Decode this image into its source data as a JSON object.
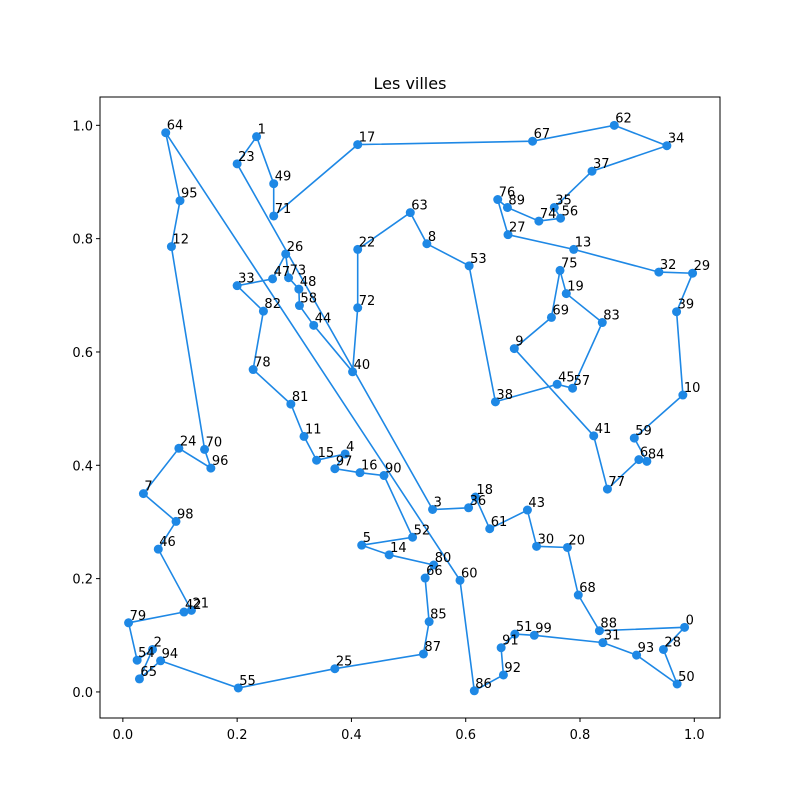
{
  "chart_data": {
    "type": "scatter",
    "title": "Les villes",
    "xlabel": "",
    "ylabel": "",
    "xlim": [
      -0.04,
      1.045
    ],
    "ylim": [
      -0.046,
      1.05
    ],
    "xticks": [
      "0.0",
      "0.2",
      "0.4",
      "0.6",
      "0.8",
      "1.0"
    ],
    "yticks": [
      "0.0",
      "0.2",
      "0.4",
      "0.6",
      "0.8",
      "1.0"
    ],
    "line_color": "#1e88e5",
    "marker_color": "#1e88e5",
    "points": [
      {
        "label": "64",
        "x": 0.075,
        "y": 0.987
      },
      {
        "label": "95",
        "x": 0.1,
        "y": 0.867
      },
      {
        "label": "12",
        "x": 0.085,
        "y": 0.786
      },
      {
        "label": "70",
        "x": 0.143,
        "y": 0.428
      },
      {
        "label": "96",
        "x": 0.154,
        "y": 0.395
      },
      {
        "label": "24",
        "x": 0.098,
        "y": 0.43
      },
      {
        "label": "7",
        "x": 0.036,
        "y": 0.35
      },
      {
        "label": "98",
        "x": 0.093,
        "y": 0.301
      },
      {
        "label": "46",
        "x": 0.062,
        "y": 0.252
      },
      {
        "label": "21",
        "x": 0.12,
        "y": 0.144
      },
      {
        "label": "42",
        "x": 0.107,
        "y": 0.141
      },
      {
        "label": "79",
        "x": 0.01,
        "y": 0.122
      },
      {
        "label": "54",
        "x": 0.025,
        "y": 0.056
      },
      {
        "label": "2",
        "x": 0.052,
        "y": 0.075
      },
      {
        "label": "65",
        "x": 0.029,
        "y": 0.023
      },
      {
        "label": "94",
        "x": 0.066,
        "y": 0.055
      },
      {
        "label": "55",
        "x": 0.202,
        "y": 0.007
      },
      {
        "label": "25",
        "x": 0.371,
        "y": 0.041
      },
      {
        "label": "87",
        "x": 0.526,
        "y": 0.067
      },
      {
        "label": "85",
        "x": 0.536,
        "y": 0.124
      },
      {
        "label": "66",
        "x": 0.529,
        "y": 0.201
      },
      {
        "label": "80",
        "x": 0.544,
        "y": 0.224
      },
      {
        "label": "14",
        "x": 0.466,
        "y": 0.242
      },
      {
        "label": "5",
        "x": 0.418,
        "y": 0.259
      },
      {
        "label": "52",
        "x": 0.507,
        "y": 0.273
      },
      {
        "label": "90",
        "x": 0.457,
        "y": 0.382
      },
      {
        "label": "16",
        "x": 0.415,
        "y": 0.387
      },
      {
        "label": "97",
        "x": 0.371,
        "y": 0.394
      },
      {
        "label": "4",
        "x": 0.389,
        "y": 0.42
      },
      {
        "label": "15",
        "x": 0.339,
        "y": 0.409
      },
      {
        "label": "11",
        "x": 0.317,
        "y": 0.451
      },
      {
        "label": "81",
        "x": 0.294,
        "y": 0.508
      },
      {
        "label": "78",
        "x": 0.228,
        "y": 0.569
      },
      {
        "label": "82",
        "x": 0.246,
        "y": 0.672
      },
      {
        "label": "33",
        "x": 0.2,
        "y": 0.717
      },
      {
        "label": "47",
        "x": 0.262,
        "y": 0.729
      },
      {
        "label": "26",
        "x": 0.285,
        "y": 0.773
      },
      {
        "label": "73",
        "x": 0.29,
        "y": 0.731
      },
      {
        "label": "48",
        "x": 0.308,
        "y": 0.711
      },
      {
        "label": "58",
        "x": 0.309,
        "y": 0.682
      },
      {
        "label": "44",
        "x": 0.334,
        "y": 0.647
      },
      {
        "label": "40",
        "x": 0.402,
        "y": 0.565
      },
      {
        "label": "72",
        "x": 0.411,
        "y": 0.678
      },
      {
        "label": "22",
        "x": 0.411,
        "y": 0.781
      },
      {
        "label": "63",
        "x": 0.503,
        "y": 0.846
      },
      {
        "label": "8",
        "x": 0.532,
        "y": 0.791
      },
      {
        "label": "53",
        "x": 0.606,
        "y": 0.752
      },
      {
        "label": "38",
        "x": 0.652,
        "y": 0.512
      },
      {
        "label": "45",
        "x": 0.76,
        "y": 0.543
      },
      {
        "label": "57",
        "x": 0.787,
        "y": 0.536
      },
      {
        "label": "83",
        "x": 0.839,
        "y": 0.652
      },
      {
        "label": "19",
        "x": 0.776,
        "y": 0.703
      },
      {
        "label": "75",
        "x": 0.765,
        "y": 0.744
      },
      {
        "label": "69",
        "x": 0.75,
        "y": 0.661
      },
      {
        "label": "9",
        "x": 0.685,
        "y": 0.606
      },
      {
        "label": "41",
        "x": 0.824,
        "y": 0.452
      },
      {
        "label": "77",
        "x": 0.848,
        "y": 0.358
      },
      {
        "label": "6",
        "x": 0.903,
        "y": 0.41
      },
      {
        "label": "84",
        "x": 0.917,
        "y": 0.407
      },
      {
        "label": "59",
        "x": 0.895,
        "y": 0.448
      },
      {
        "label": "10",
        "x": 0.98,
        "y": 0.524
      },
      {
        "label": "39",
        "x": 0.969,
        "y": 0.671
      },
      {
        "label": "29",
        "x": 0.997,
        "y": 0.739
      },
      {
        "label": "32",
        "x": 0.938,
        "y": 0.741
      },
      {
        "label": "13",
        "x": 0.789,
        "y": 0.781
      },
      {
        "label": "27",
        "x": 0.674,
        "y": 0.807
      },
      {
        "label": "76",
        "x": 0.656,
        "y": 0.869
      },
      {
        "label": "89",
        "x": 0.673,
        "y": 0.855
      },
      {
        "label": "74",
        "x": 0.728,
        "y": 0.831
      },
      {
        "label": "56",
        "x": 0.766,
        "y": 0.836
      },
      {
        "label": "35",
        "x": 0.755,
        "y": 0.855
      },
      {
        "label": "37",
        "x": 0.821,
        "y": 0.919
      },
      {
        "label": "34",
        "x": 0.952,
        "y": 0.964
      },
      {
        "label": "62",
        "x": 0.86,
        "y": 1.0
      },
      {
        "label": "67",
        "x": 0.717,
        "y": 0.972
      },
      {
        "label": "17",
        "x": 0.411,
        "y": 0.966
      },
      {
        "label": "71",
        "x": 0.264,
        "y": 0.84
      },
      {
        "label": "49",
        "x": 0.264,
        "y": 0.897
      },
      {
        "label": "1",
        "x": 0.234,
        "y": 0.98
      },
      {
        "label": "23",
        "x": 0.2,
        "y": 0.932
      },
      {
        "label": "3",
        "x": 0.542,
        "y": 0.322
      },
      {
        "label": "36",
        "x": 0.605,
        "y": 0.325
      },
      {
        "label": "18",
        "x": 0.617,
        "y": 0.344
      },
      {
        "label": "61",
        "x": 0.642,
        "y": 0.288
      },
      {
        "label": "43",
        "x": 0.708,
        "y": 0.321
      },
      {
        "label": "30",
        "x": 0.724,
        "y": 0.257
      },
      {
        "label": "20",
        "x": 0.778,
        "y": 0.255
      },
      {
        "label": "68",
        "x": 0.797,
        "y": 0.171
      },
      {
        "label": "88",
        "x": 0.834,
        "y": 0.108
      },
      {
        "label": "0",
        "x": 0.983,
        "y": 0.114
      },
      {
        "label": "28",
        "x": 0.946,
        "y": 0.075
      },
      {
        "label": "50",
        "x": 0.97,
        "y": 0.014
      },
      {
        "label": "93",
        "x": 0.899,
        "y": 0.065
      },
      {
        "label": "31",
        "x": 0.84,
        "y": 0.087
      },
      {
        "label": "99",
        "x": 0.72,
        "y": 0.1
      },
      {
        "label": "51",
        "x": 0.686,
        "y": 0.102
      },
      {
        "label": "91",
        "x": 0.662,
        "y": 0.078
      },
      {
        "label": "92",
        "x": 0.666,
        "y": 0.03
      },
      {
        "label": "86",
        "x": 0.615,
        "y": 0.002
      },
      {
        "label": "60",
        "x": 0.59,
        "y": 0.197
      }
    ]
  }
}
